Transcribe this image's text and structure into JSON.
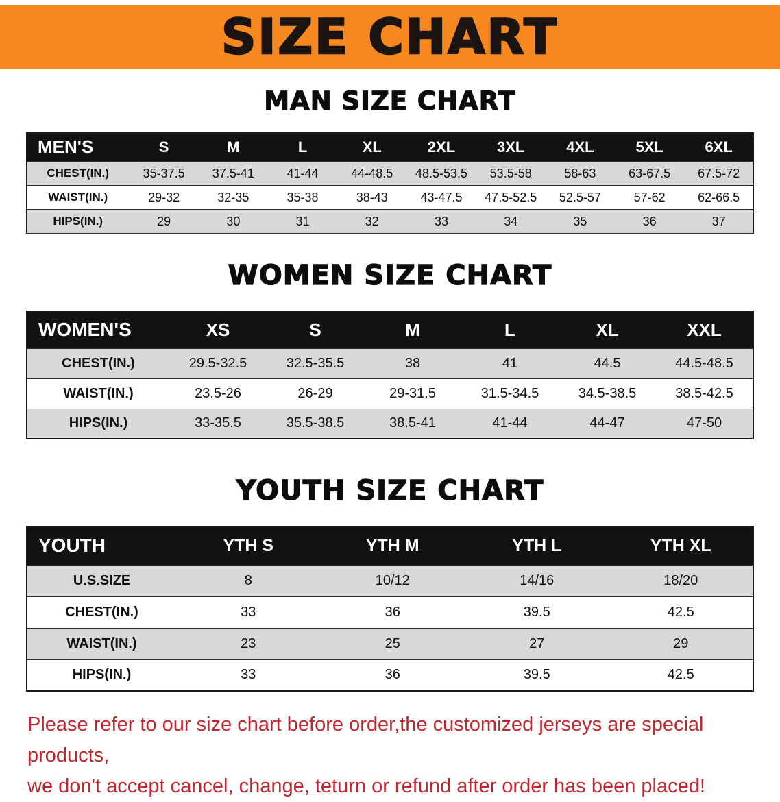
{
  "banner": {
    "title": "SIZE CHART"
  },
  "colors": {
    "banner_bg": "#f6881f",
    "header_bg": "#121212",
    "stripe": "#d8d8d8",
    "note_color": "#c1272d"
  },
  "sections": [
    {
      "heading": "MAN SIZE CHART",
      "table": {
        "header": [
          "MEN'S",
          "S",
          "M",
          "L",
          "XL",
          "2XL",
          "3XL",
          "4XL",
          "5XL",
          "6XL"
        ],
        "rows": [
          {
            "label": "CHEST(IN.)",
            "values": [
              "35-37.5",
              "37.5-41",
              "41-44",
              "44-48.5",
              "48.5-53.5",
              "53.5-58",
              "58-63",
              "63-67.5",
              "67.5-72"
            ]
          },
          {
            "label": "WAIST(IN.)",
            "values": [
              "29-32",
              "32-35",
              "35-38",
              "38-43",
              "43-47.5",
              "47.5-52.5",
              "52.5-57",
              "57-62",
              "62-66.5"
            ]
          },
          {
            "label": "HIPS(IN.)",
            "values": [
              "29",
              "30",
              "31",
              "32",
              "33",
              "34",
              "35",
              "36",
              "37"
            ]
          }
        ]
      }
    },
    {
      "heading": "WOMEN SIZE CHART",
      "table": {
        "header": [
          "WOMEN'S",
          "XS",
          "S",
          "M",
          "L",
          "XL",
          "XXL"
        ],
        "rows": [
          {
            "label": "CHEST(IN.)",
            "values": [
              "29.5-32.5",
              "32.5-35.5",
              "38",
              "41",
              "44.5",
              "44.5-48.5"
            ]
          },
          {
            "label": "WAIST(IN.)",
            "values": [
              "23.5-26",
              "26-29",
              "29-31.5",
              "31.5-34.5",
              "34.5-38.5",
              "38.5-42.5"
            ]
          },
          {
            "label": "HIPS(IN.)",
            "values": [
              "33-35.5",
              "35.5-38.5",
              "38.5-41",
              "41-44",
              "44-47",
              "47-50"
            ]
          }
        ]
      }
    },
    {
      "heading": "YOUTH SIZE CHART",
      "table": {
        "header": [
          "YOUTH",
          "YTH S",
          "YTH M",
          "YTH L",
          "YTH XL"
        ],
        "rows": [
          {
            "label": "U.S.SIZE",
            "values": [
              "8",
              "10/12",
              "14/16",
              "18/20"
            ]
          },
          {
            "label": "CHEST(IN.)",
            "values": [
              "33",
              "36",
              "39.5",
              "42.5"
            ]
          },
          {
            "label": "WAIST(IN.)",
            "values": [
              "23",
              "25",
              "27",
              "29"
            ]
          },
          {
            "label": "HIPS(IN.)",
            "values": [
              "33",
              "36",
              "39.5",
              "42.5"
            ]
          }
        ]
      }
    }
  ],
  "note": {
    "line1": "Please refer to our size chart before order,the customized jerseys are special products,",
    "line2": "we don't accept cancel, change, teturn or refund after order has been placed!"
  }
}
